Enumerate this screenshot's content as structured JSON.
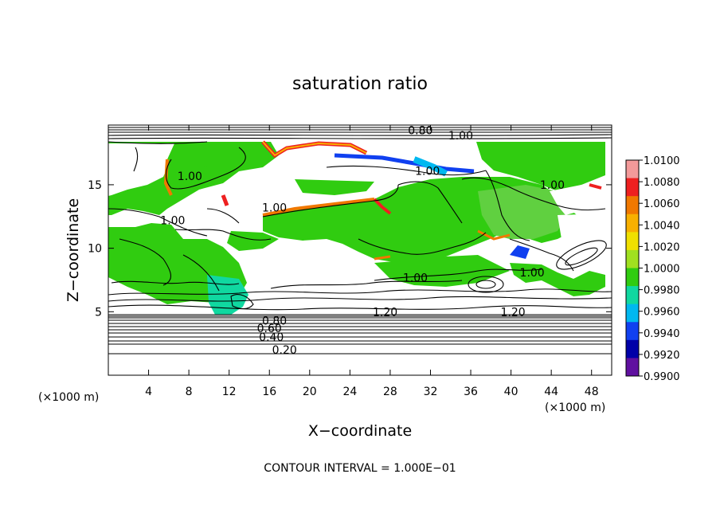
{
  "chart_data": {
    "type": "heatmap",
    "title": "saturation ratio",
    "xlabel": "X−coordinate",
    "ylabel": "Z−coordinate",
    "x_unit": "(×1000 m)",
    "z_unit": "(×1000 m)",
    "x_ticks": [
      4,
      8,
      12,
      16,
      20,
      24,
      28,
      32,
      36,
      40,
      44,
      48
    ],
    "z_ticks": [
      5,
      10,
      15
    ],
    "xlim": [
      0,
      50
    ],
    "ylim": [
      0,
      19.7
    ],
    "footer": "CONTOUR INTERVAL = 1.000E−01",
    "colorbar": {
      "ticks": [
        "1.0100",
        "1.0080",
        "1.0060",
        "1.0040",
        "1.0020",
        "1.0000",
        "0.9980",
        "0.9960",
        "0.9940",
        "0.9920",
        "0.9900"
      ],
      "colors": [
        "#f39a9a",
        "#ee2020",
        "#f07800",
        "#f8b000",
        "#f0e000",
        "#a0e020",
        "#30cc10",
        "#10d8a0",
        "#00b8f0",
        "#1040f0",
        "#0000a8",
        "#6010a0"
      ]
    },
    "contour_labels": [
      {
        "text": "0.20",
        "x": 17.5,
        "z": 2.0
      },
      {
        "text": "0.40",
        "x": 16.2,
        "z": 3.0
      },
      {
        "text": "0.60",
        "x": 16.0,
        "z": 3.7
      },
      {
        "text": "0.80",
        "x": 16.5,
        "z": 4.3
      },
      {
        "text": "1.20",
        "x": 27.5,
        "z": 5.0
      },
      {
        "text": "1.20",
        "x": 40.2,
        "z": 5.0
      },
      {
        "text": "1.00",
        "x": 30.5,
        "z": 7.7
      },
      {
        "text": "1.00",
        "x": 42.1,
        "z": 8.1
      },
      {
        "text": "1.00",
        "x": 6.4,
        "z": 12.2
      },
      {
        "text": "1.00",
        "x": 16.5,
        "z": 13.2
      },
      {
        "text": "1.00",
        "x": 8.1,
        "z": 15.7
      },
      {
        "text": "1.00",
        "x": 31.7,
        "z": 16.1
      },
      {
        "text": "1.00",
        "x": 44.1,
        "z": 15.0
      },
      {
        "text": "0.80",
        "x": 31.0,
        "z": 19.3
      },
      {
        "text": "1.00",
        "x": 35.0,
        "z": 18.9
      }
    ]
  }
}
